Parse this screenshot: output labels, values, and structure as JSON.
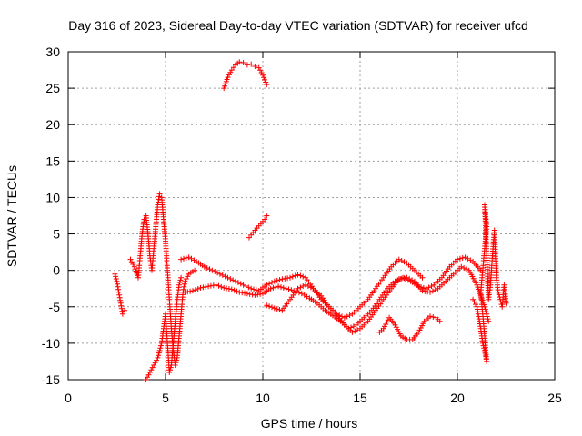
{
  "chart_data": {
    "type": "scatter",
    "title": "Day 316 of 2023, Sidereal Day-to-day VTEC variation (SDTVAR) for receiver ufcd",
    "xlabel": "GPS time / hours",
    "ylabel": "SDTVAR / TECUs",
    "xlim": [
      0,
      25
    ],
    "ylim": [
      -15,
      30
    ],
    "xticks": [
      0,
      5,
      10,
      15,
      20,
      25
    ],
    "yticks": [
      -15,
      -10,
      -5,
      0,
      5,
      10,
      15,
      20,
      25,
      30
    ],
    "grid": true,
    "marker": "+",
    "color": "#ff0000",
    "segments": [
      {
        "name": "early-left",
        "points": [
          [
            2.4,
            -0.5
          ],
          [
            2.5,
            -1.5
          ],
          [
            2.6,
            -3
          ],
          [
            2.7,
            -4.5
          ],
          [
            2.8,
            -6
          ],
          [
            2.9,
            -5.5
          ]
        ]
      },
      {
        "name": "spike-left",
        "points": [
          [
            3.2,
            1.5
          ],
          [
            3.4,
            0.5
          ],
          [
            3.6,
            -1
          ],
          [
            3.7,
            2
          ],
          [
            3.8,
            5
          ],
          [
            3.9,
            7
          ],
          [
            4.0,
            7.5
          ],
          [
            4.1,
            5
          ],
          [
            4.2,
            2
          ],
          [
            4.3,
            0
          ],
          [
            4.4,
            3
          ],
          [
            4.5,
            6
          ],
          [
            4.6,
            9
          ],
          [
            4.7,
            10.5
          ],
          [
            4.8,
            10
          ],
          [
            4.9,
            7
          ],
          [
            5.0,
            4
          ],
          [
            5.1,
            0
          ],
          [
            5.2,
            -4
          ],
          [
            5.3,
            -8
          ],
          [
            5.4,
            -11
          ],
          [
            5.5,
            -13
          ],
          [
            5.6,
            -12
          ],
          [
            5.7,
            -9
          ],
          [
            5.8,
            -6
          ],
          [
            5.9,
            -3
          ],
          [
            6.0,
            -1.5
          ],
          [
            6.2,
            -0.5
          ],
          [
            6.5,
            0
          ]
        ]
      },
      {
        "name": "spike-down",
        "points": [
          [
            4.0,
            -15
          ],
          [
            4.2,
            -14
          ],
          [
            4.4,
            -13
          ],
          [
            4.6,
            -12
          ],
          [
            4.8,
            -10
          ],
          [
            4.9,
            -8
          ],
          [
            5.0,
            -6
          ],
          [
            5.1,
            -10
          ],
          [
            5.2,
            -14
          ],
          [
            5.3,
            -13
          ],
          [
            5.4,
            -10
          ],
          [
            5.5,
            -7
          ],
          [
            5.6,
            -4
          ],
          [
            5.7,
            -2
          ],
          [
            5.8,
            -1
          ]
        ]
      },
      {
        "name": "low-band-upper",
        "points": [
          [
            5.8,
            1.5
          ],
          [
            6.2,
            1.8
          ],
          [
            6.6,
            1.2
          ],
          [
            7.0,
            0.5
          ],
          [
            7.4,
            0
          ],
          [
            7.8,
            -0.5
          ],
          [
            8.2,
            -1
          ],
          [
            8.6,
            -1.5
          ],
          [
            9.0,
            -2
          ],
          [
            9.4,
            -2.5
          ],
          [
            9.8,
            -2.8
          ],
          [
            10.2,
            -2
          ],
          [
            10.6,
            -1.5
          ],
          [
            11.0,
            -1.2
          ],
          [
            11.4,
            -1
          ],
          [
            11.8,
            -0.6
          ],
          [
            12.2,
            -1
          ],
          [
            12.6,
            -2.5
          ],
          [
            13.0,
            -4
          ],
          [
            13.4,
            -5
          ],
          [
            13.8,
            -6
          ],
          [
            14.2,
            -6.5
          ],
          [
            14.6,
            -6
          ],
          [
            15.0,
            -5
          ],
          [
            15.4,
            -4
          ],
          [
            15.8,
            -2.5
          ],
          [
            16.2,
            -1
          ],
          [
            16.6,
            0.5
          ],
          [
            17.0,
            1.5
          ],
          [
            17.4,
            1
          ],
          [
            17.8,
            0
          ],
          [
            18.2,
            -1
          ]
        ]
      },
      {
        "name": "low-band-lower",
        "points": [
          [
            6.0,
            -3
          ],
          [
            6.4,
            -2.8
          ],
          [
            6.8,
            -2.4
          ],
          [
            7.2,
            -2.2
          ],
          [
            7.6,
            -2
          ],
          [
            8.0,
            -2.4
          ],
          [
            8.4,
            -2.6
          ],
          [
            8.8,
            -3
          ],
          [
            9.2,
            -3.2
          ],
          [
            9.6,
            -3.4
          ],
          [
            10.0,
            -3.2
          ],
          [
            10.4,
            -2.5
          ],
          [
            10.8,
            -2.2
          ],
          [
            11.2,
            -2.5
          ],
          [
            11.6,
            -2.8
          ],
          [
            12.0,
            -3.2
          ],
          [
            12.4,
            -3.8
          ],
          [
            12.8,
            -4.5
          ],
          [
            13.2,
            -5.5
          ],
          [
            13.6,
            -6.2
          ],
          [
            14.0,
            -7
          ],
          [
            14.4,
            -8
          ],
          [
            14.8,
            -7.5
          ],
          [
            15.2,
            -6.5
          ],
          [
            15.6,
            -5.5
          ],
          [
            16.0,
            -4
          ],
          [
            16.4,
            -2.5
          ],
          [
            16.8,
            -1.5
          ],
          [
            17.2,
            -1
          ],
          [
            17.6,
            -1.5
          ],
          [
            18.0,
            -2.2
          ],
          [
            18.4,
            -2.5
          ],
          [
            18.8,
            -2
          ],
          [
            19.2,
            -1
          ],
          [
            19.6,
            0.5
          ],
          [
            20.0,
            1.5
          ],
          [
            20.4,
            1.8
          ],
          [
            20.8,
            1.2
          ],
          [
            21.2,
            0
          ]
        ]
      },
      {
        "name": "low-band-third",
        "points": [
          [
            10.2,
            -4.8
          ],
          [
            10.6,
            -5.2
          ],
          [
            11.0,
            -5.5
          ],
          [
            11.4,
            -4
          ],
          [
            11.8,
            -2.5
          ],
          [
            12.2,
            -2
          ],
          [
            12.6,
            -2.5
          ],
          [
            13.0,
            -3.5
          ],
          [
            13.4,
            -5
          ],
          [
            13.8,
            -6
          ],
          [
            14.2,
            -7.5
          ],
          [
            14.6,
            -8.5
          ],
          [
            15.0,
            -8
          ],
          [
            15.4,
            -7
          ],
          [
            15.8,
            -5.5
          ],
          [
            16.2,
            -4
          ],
          [
            16.6,
            -2.5
          ],
          [
            17.0,
            -1.2
          ],
          [
            17.4,
            -1
          ],
          [
            17.8,
            -1.5
          ],
          [
            18.2,
            -2.8
          ],
          [
            18.6,
            -3
          ],
          [
            19.0,
            -2.5
          ],
          [
            19.4,
            -1.5
          ],
          [
            19.8,
            -0.5
          ],
          [
            20.2,
            0.5
          ],
          [
            20.6,
            0
          ],
          [
            21.0,
            -2
          ],
          [
            21.4,
            -5
          ],
          [
            21.6,
            -7
          ]
        ]
      },
      {
        "name": "bump-mid",
        "points": [
          [
            8.0,
            25
          ],
          [
            8.2,
            26.5
          ],
          [
            8.4,
            27.5
          ],
          [
            8.6,
            28.2
          ],
          [
            8.8,
            28.6
          ],
          [
            9.0,
            28.5
          ],
          [
            9.2,
            28.2
          ],
          [
            9.4,
            28.3
          ],
          [
            9.6,
            28
          ],
          [
            9.8,
            27.8
          ],
          [
            10.0,
            26.8
          ],
          [
            10.2,
            25.5
          ]
        ]
      },
      {
        "name": "rise-mid",
        "points": [
          [
            9.3,
            4.5
          ],
          [
            9.5,
            5.2
          ],
          [
            9.7,
            5.8
          ],
          [
            9.9,
            6.4
          ],
          [
            10.1,
            7
          ],
          [
            10.2,
            7.5
          ]
        ]
      },
      {
        "name": "late-low",
        "points": [
          [
            16.0,
            -8.5
          ],
          [
            16.2,
            -8
          ],
          [
            16.5,
            -6.5
          ],
          [
            16.8,
            -7.5
          ],
          [
            17.1,
            -9
          ],
          [
            17.4,
            -9.5
          ],
          [
            17.7,
            -9.5
          ],
          [
            18.0,
            -8.5
          ],
          [
            18.3,
            -7
          ],
          [
            18.6,
            -6.3
          ],
          [
            18.9,
            -6.5
          ],
          [
            19.1,
            -7
          ]
        ]
      },
      {
        "name": "end-scatter",
        "points": [
          [
            20.8,
            -4
          ],
          [
            21.0,
            -5
          ],
          [
            21.2,
            -8
          ],
          [
            21.3,
            -10
          ],
          [
            21.4,
            -11
          ],
          [
            21.5,
            -12.5
          ],
          [
            21.4,
            -9
          ],
          [
            21.3,
            -6
          ],
          [
            21.2,
            -3
          ],
          [
            21.3,
            0
          ],
          [
            21.4,
            3
          ],
          [
            21.5,
            6
          ],
          [
            21.4,
            9
          ],
          [
            21.6,
            -4
          ],
          [
            21.7,
            -2
          ],
          [
            21.8,
            2
          ],
          [
            21.9,
            5.5
          ],
          [
            22.0,
            -1
          ],
          [
            22.1,
            -3
          ],
          [
            22.3,
            -5
          ],
          [
            22.4,
            -2
          ],
          [
            22.5,
            -4.5
          ]
        ]
      }
    ]
  }
}
